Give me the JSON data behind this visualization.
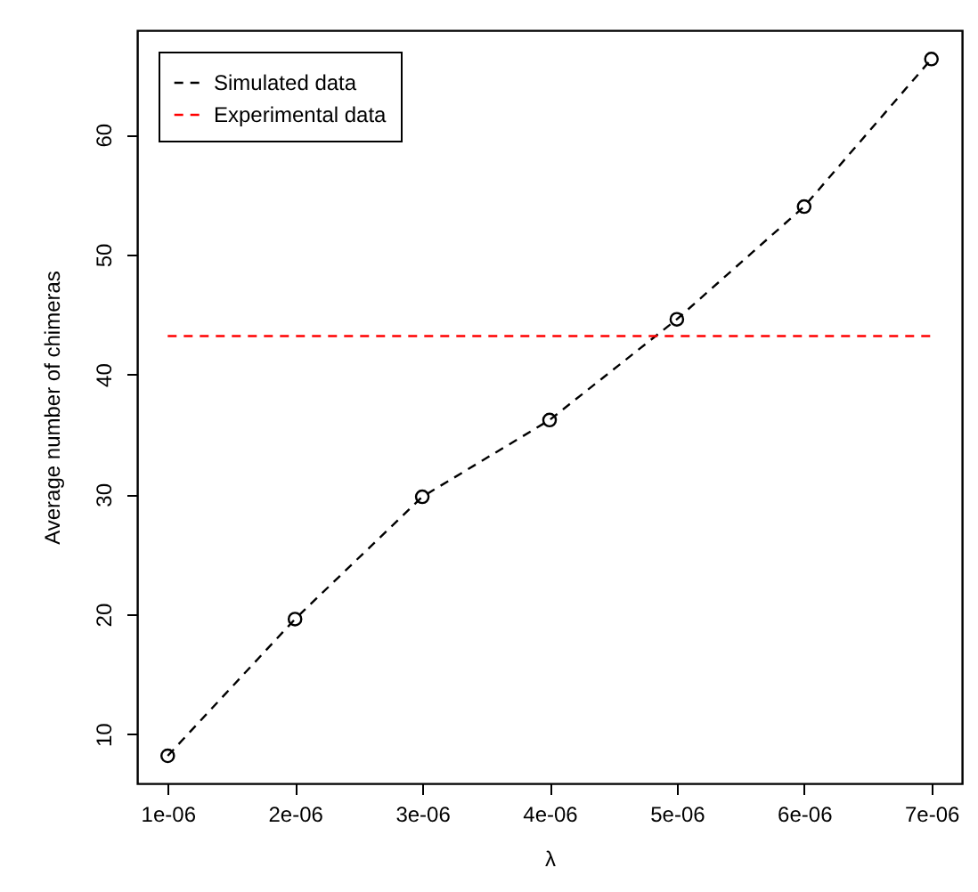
{
  "chart_data": {
    "type": "line",
    "xlabel": "λ",
    "ylabel": "Average number of chimeras",
    "x": [
      1e-06,
      2e-06,
      3e-06,
      4e-06,
      5e-06,
      6e-06,
      7e-06
    ],
    "series": [
      {
        "name": "Simulated data",
        "color": "#000000",
        "values": [
          8.2,
          19.6,
          29.8,
          36.2,
          44.6,
          54.0,
          66.3
        ]
      }
    ],
    "ref_lines": [
      {
        "axis": "y",
        "value": 43.2,
        "label": "Experimental data",
        "color": "#ff0000",
        "line_style": "dashed"
      }
    ],
    "xlim": [
      7.6e-07,
      7.24e-06
    ],
    "ylim": [
      5.9,
      68.7
    ],
    "xticks": [
      {
        "value": 1e-06,
        "label": "1e-06"
      },
      {
        "value": 2e-06,
        "label": "2e-06"
      },
      {
        "value": 3e-06,
        "label": "3e-06"
      },
      {
        "value": 4e-06,
        "label": "4e-06"
      },
      {
        "value": 5e-06,
        "label": "5e-06"
      },
      {
        "value": 6e-06,
        "label": "6e-06"
      },
      {
        "value": 7e-06,
        "label": "7e-06"
      }
    ],
    "yticks": [
      10,
      20,
      30,
      40,
      50,
      60
    ],
    "marker": "circle",
    "line_style": "dashed",
    "grid": false,
    "legend": "top left"
  }
}
